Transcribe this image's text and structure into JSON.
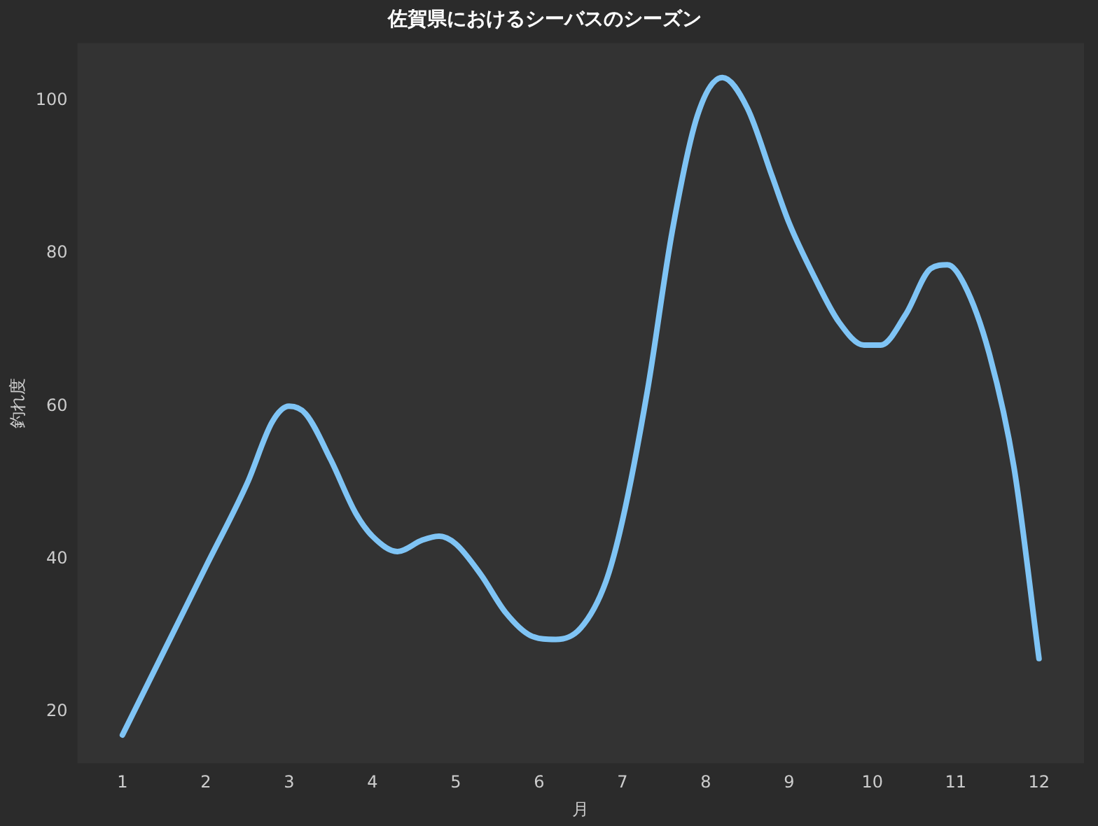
{
  "chart_data": {
    "type": "line",
    "title": "佐賀県におけるシーバスのシーズン",
    "xlabel": "月",
    "ylabel": "釣れ度",
    "xlim": [
      0.46,
      12.54
    ],
    "xticks": [
      1,
      2,
      3,
      4,
      5,
      6,
      7,
      8,
      9,
      10,
      11,
      12
    ],
    "ylim": [
      13.3,
      107.5
    ],
    "yticks": [
      20,
      40,
      60,
      80,
      100
    ],
    "grid": false,
    "legend": false,
    "marker": "none",
    "line_style": "solid",
    "series": [
      {
        "color": "#7fc4f5",
        "x": [
          1,
          1.5,
          2,
          2.5,
          2.8,
          3,
          3.2,
          3.5,
          3.8,
          4,
          4.3,
          4.6,
          4.8,
          5,
          5.3,
          5.6,
          5.9,
          6.2,
          6.5,
          6.8,
          7,
          7.3,
          7.6,
          7.9,
          8.2,
          8.5,
          8.8,
          9,
          9.3,
          9.6,
          9.9,
          10.1,
          10.4,
          10.7,
          10.9,
          11.1,
          11.4,
          11.7,
          12
        ],
        "values": [
          17,
          28,
          39,
          50,
          58,
          60,
          59,
          53,
          46,
          43,
          41,
          42.5,
          43,
          42,
          38,
          33,
          30,
          29.5,
          31,
          37,
          45,
          62,
          83,
          98,
          103,
          99,
          90,
          84,
          77,
          71,
          68,
          68,
          72,
          78,
          78.5,
          76,
          67,
          52,
          27
        ]
      }
    ]
  }
}
